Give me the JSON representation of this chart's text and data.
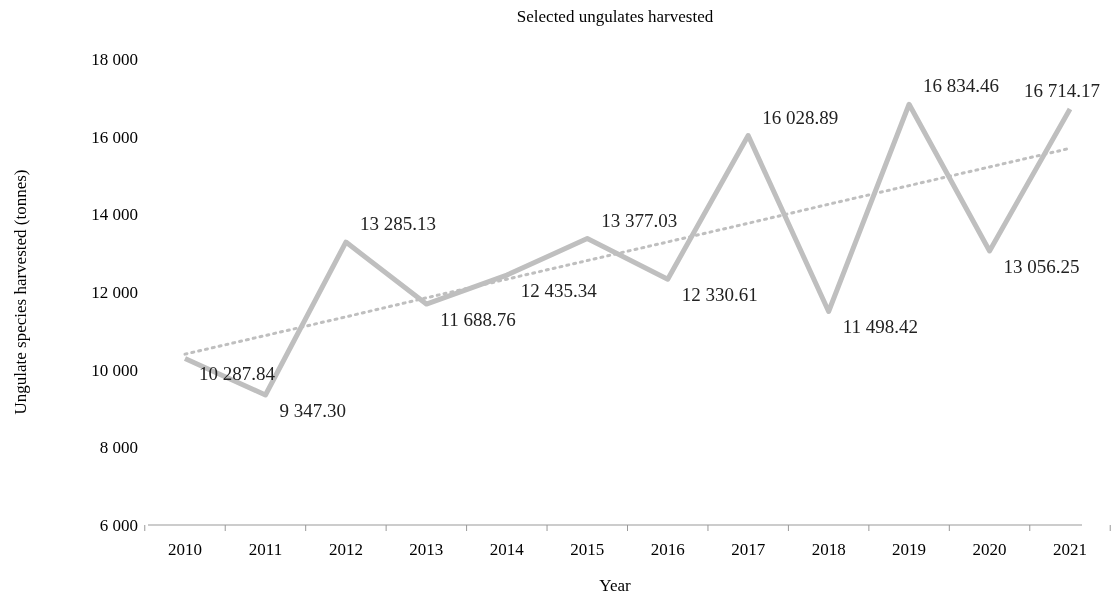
{
  "chart_data": {
    "type": "line",
    "title": "Selected ungulates harvested",
    "xlabel": "Year",
    "ylabel": "Ungulate species harvested (tonnes)",
    "categories": [
      "2010",
      "2011",
      "2012",
      "2013",
      "2014",
      "2015",
      "2016",
      "2017",
      "2018",
      "2019",
      "2020",
      "2021"
    ],
    "ylim": [
      6000,
      18000
    ],
    "yticks": [
      {
        "value": 6000,
        "label": "6 000"
      },
      {
        "value": 8000,
        "label": "8 000"
      },
      {
        "value": 10000,
        "label": "10 000"
      },
      {
        "value": 12000,
        "label": "12 000"
      },
      {
        "value": 14000,
        "label": "14 000"
      },
      {
        "value": 16000,
        "label": "16 000"
      },
      {
        "value": 18000,
        "label": "18 000"
      }
    ],
    "grid": false,
    "series": [
      {
        "color": "#bfbfbf",
        "line_style": "solid",
        "values": [
          10287.84,
          9347.3,
          13285.13,
          11688.76,
          12435.34,
          13377.03,
          12330.61,
          16028.89,
          11498.42,
          16834.46,
          13056.25,
          16714.17
        ],
        "value_labels": [
          "10 287.84",
          "9 347.30",
          "13 285.13",
          "11 688.76",
          "12 435.34",
          "13 377.03",
          "12 330.61",
          "16 028.89",
          "11 498.42",
          "16 834.46",
          "13 056.25",
          "16 714.17"
        ]
      },
      {
        "color": "#bfbfbf",
        "line_style": "dotted",
        "values": [
          10400,
          10880,
          11360,
          11850,
          12330,
          12810,
          13290,
          13770,
          14260,
          14740,
          15220,
          15700
        ]
      }
    ]
  }
}
